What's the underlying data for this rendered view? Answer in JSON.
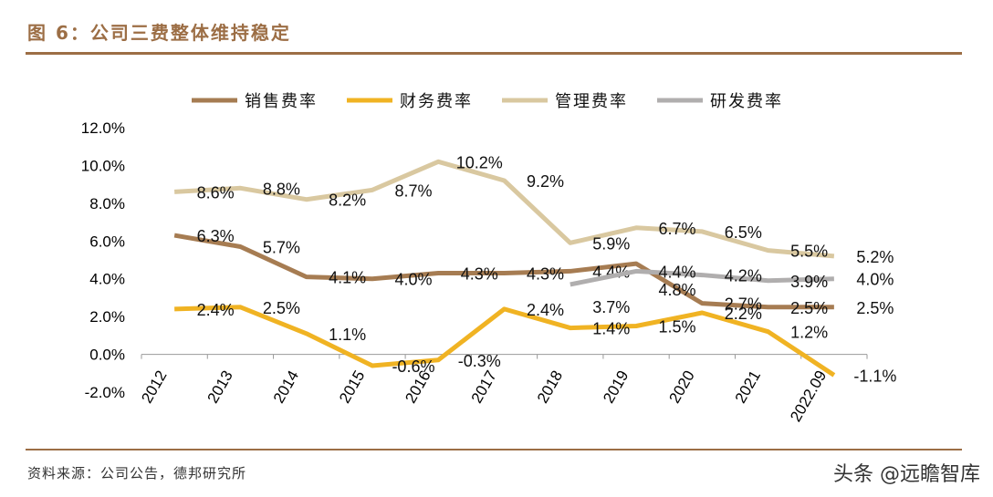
{
  "title": "图 6：公司三费整体维持稳定",
  "source": "资料来源：公司公告，德邦研究所",
  "watermark": "头条 @远瞻智库",
  "chart_data": {
    "type": "line",
    "title": "",
    "xlabel": "",
    "ylabel": "",
    "categories": [
      "2012",
      "2013",
      "2014",
      "2015",
      "2016",
      "2017",
      "2018",
      "2019",
      "2020",
      "2021",
      "2022.09"
    ],
    "ylim": [
      -2.0,
      12.0
    ],
    "yticks": [
      "-2.0%",
      "0.0%",
      "2.0%",
      "4.0%",
      "6.0%",
      "8.0%",
      "10.0%",
      "12.0%"
    ],
    "legend": "top",
    "grid": false,
    "series": [
      {
        "name": "销售费率",
        "color": "#a67c52",
        "values": [
          6.3,
          5.7,
          4.1,
          4.0,
          4.3,
          4.3,
          4.4,
          4.8,
          2.7,
          2.5,
          2.5
        ]
      },
      {
        "name": "财务费率",
        "color": "#f0b323",
        "values": [
          2.4,
          2.5,
          1.1,
          -0.6,
          -0.3,
          2.4,
          1.4,
          1.5,
          2.2,
          1.2,
          -1.1
        ]
      },
      {
        "name": "管理费率",
        "color": "#d9c8a0",
        "values": [
          8.6,
          8.8,
          8.2,
          8.7,
          10.2,
          9.2,
          5.9,
          6.7,
          6.5,
          5.5,
          5.2
        ]
      },
      {
        "name": "研发费率",
        "color": "#b0aeae",
        "values": [
          null,
          null,
          null,
          null,
          null,
          null,
          3.7,
          4.4,
          4.2,
          3.9,
          4.0
        ]
      }
    ]
  }
}
